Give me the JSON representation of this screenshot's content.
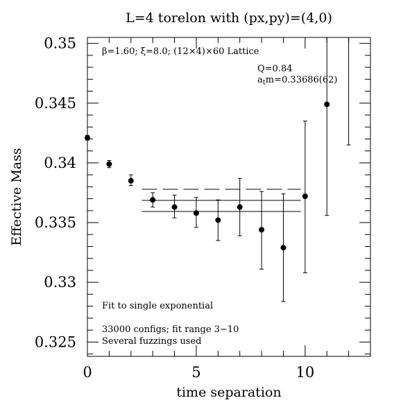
{
  "chart_data": {
    "type": "scatter",
    "title": "L=4 torelon with (px,py)=(4,0)",
    "xlabel": "time separation",
    "ylabel": "Effective Mass",
    "xlim": [
      0,
      13
    ],
    "ylim": [
      0.3238,
      0.3505
    ],
    "x_ticks": [
      0,
      5,
      10
    ],
    "x_tick_labels": [
      "0",
      "5",
      "10"
    ],
    "y_ticks": [
      0.325,
      0.33,
      0.335,
      0.34,
      0.345,
      0.35
    ],
    "y_tick_labels": [
      "0.325",
      "0.33",
      "0.335",
      "0.34",
      "0.345",
      "0.35"
    ],
    "points": [
      {
        "x": 0,
        "y": 0.3421,
        "lo": 0.3419,
        "hi": 0.3423
      },
      {
        "x": 1,
        "y": 0.3399,
        "lo": 0.3396,
        "hi": 0.3402
      },
      {
        "x": 2,
        "y": 0.3385,
        "lo": 0.3381,
        "hi": 0.339
      },
      {
        "x": 3,
        "y": 0.3369,
        "lo": 0.3363,
        "hi": 0.3375
      },
      {
        "x": 4,
        "y": 0.3363,
        "lo": 0.3354,
        "hi": 0.3373
      },
      {
        "x": 5,
        "y": 0.3358,
        "lo": 0.3346,
        "hi": 0.3371
      },
      {
        "x": 6,
        "y": 0.3352,
        "lo": 0.3335,
        "hi": 0.3369
      },
      {
        "x": 7,
        "y": 0.3363,
        "lo": 0.3339,
        "hi": 0.3387
      },
      {
        "x": 8,
        "y": 0.3344,
        "lo": 0.3311,
        "hi": 0.3376
      },
      {
        "x": 9,
        "y": 0.3329,
        "lo": 0.3284,
        "hi": 0.3374
      },
      {
        "x": 10,
        "y": 0.3372,
        "lo": 0.3308,
        "hi": 0.3435
      },
      {
        "x": 11,
        "y": 0.3449,
        "lo": 0.3356,
        "hi": 0.3505
      },
      {
        "x": 12,
        "y": 0.3505,
        "lo": 0.3415,
        "hi": 0.3505
      }
    ],
    "fit": {
      "x_start": 2.5,
      "x_end": 9.8,
      "value": 0.33686,
      "error": 0.00062
    },
    "annotations": {
      "lattice": "β=1.60; ξ=8.0; (12×4)×60 Lattice",
      "q_value": "Q=0.84",
      "mass_prefix": "a",
      "mass_subscript": "t",
      "mass_value": "m=0.33686(62)",
      "fit_type": "Fit to single exponential",
      "configs": "33000 configs; fit range 3−10",
      "fuzzings": "Several fuzzings used"
    }
  }
}
